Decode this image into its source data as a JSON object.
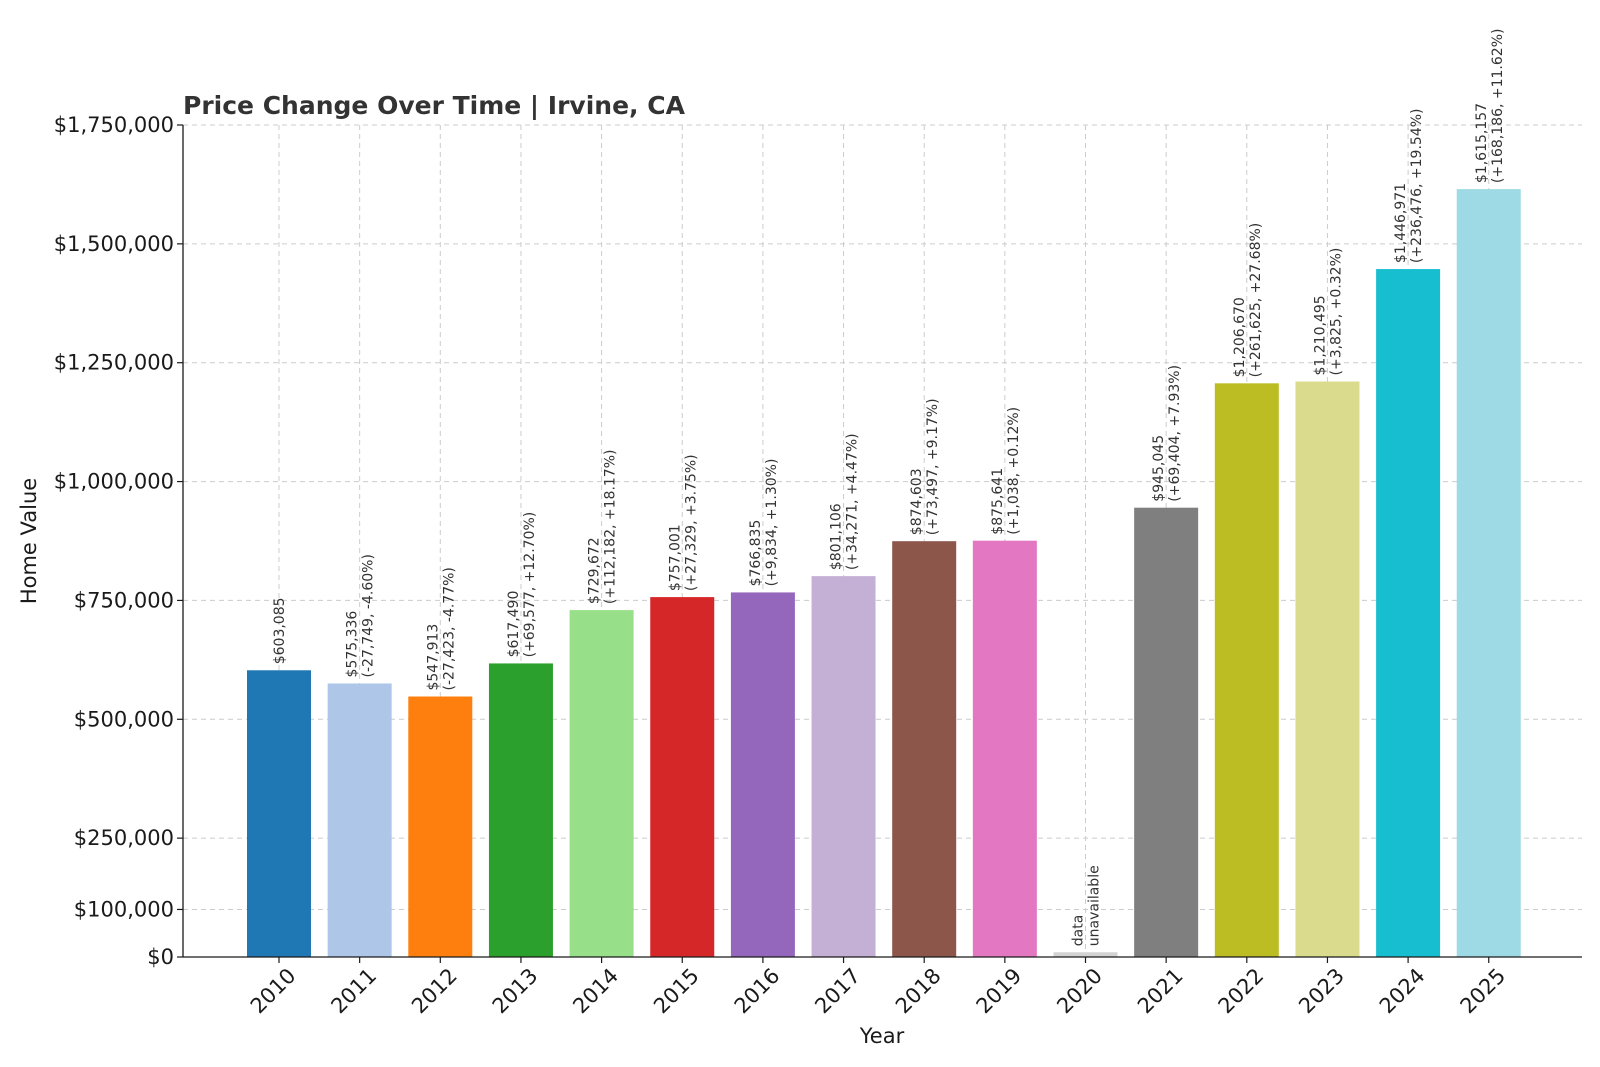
{
  "chart_data": {
    "type": "bar",
    "title": "Price Change Over Time | Irvine, CA",
    "xlabel": "Year",
    "ylabel": "Home Value",
    "ylim": [
      0,
      1750000
    ],
    "yticks": [
      0,
      100000,
      250000,
      500000,
      750000,
      1000000,
      1250000,
      1500000,
      1750000
    ],
    "ytick_labels": [
      "$0",
      "$100,000",
      "$250,000",
      "$500,000",
      "$750,000",
      "$1,000,000",
      "$1,250,000",
      "$1,500,000",
      "$1,750,000"
    ],
    "grid": true,
    "categories": [
      "2010",
      "2011",
      "2012",
      "2013",
      "2014",
      "2015",
      "2016",
      "2017",
      "2018",
      "2019",
      "2020",
      "2021",
      "2022",
      "2023",
      "2024",
      "2025"
    ],
    "values": [
      603085,
      575336,
      547913,
      617490,
      729672,
      757001,
      766835,
      801106,
      874603,
      875641,
      10000,
      945045,
      1206670,
      1210495,
      1446971,
      1615157
    ],
    "colors": [
      "#1f77b4",
      "#aec7e8",
      "#ff7f0e",
      "#2ca02c",
      "#98df8a",
      "#d62728",
      "#9467bd",
      "#c5b0d5",
      "#8c564b",
      "#e377c2",
      "#d3d3d3",
      "#7f7f7f",
      "#bcbd22",
      "#dbdb8d",
      "#17becf",
      "#9edae5"
    ],
    "labels": [
      [
        "$603,085"
      ],
      [
        "$575,336",
        "(-27,749, -4.60%)"
      ],
      [
        "$547,913",
        "(-27,423, -4.77%)"
      ],
      [
        "$617,490",
        "(+69,577, +12.70%)"
      ],
      [
        "$729,672",
        "(+112,182, +18.17%)"
      ],
      [
        "$757,001",
        "(+27,329, +3.75%)"
      ],
      [
        "$766,835",
        "(+9,834, +1.30%)"
      ],
      [
        "$801,106",
        "(+34,271, +4.47%)"
      ],
      [
        "$874,603",
        "(+73,497, +9.17%)"
      ],
      [
        "$875,641",
        "(+1,038, +0.12%)"
      ],
      [
        "data",
        "unavailable"
      ],
      [
        "$945,045",
        "(+69,404, +7.93%)"
      ],
      [
        "$1,206,670",
        "(+261,625, +27.68%)"
      ],
      [
        "$1,210,495",
        "(+3,825, +0.32%)"
      ],
      [
        "$1,446,971",
        "(+236,476, +19.54%)"
      ],
      [
        "$1,615,157",
        "(+168,186, +11.62%)"
      ]
    ]
  }
}
